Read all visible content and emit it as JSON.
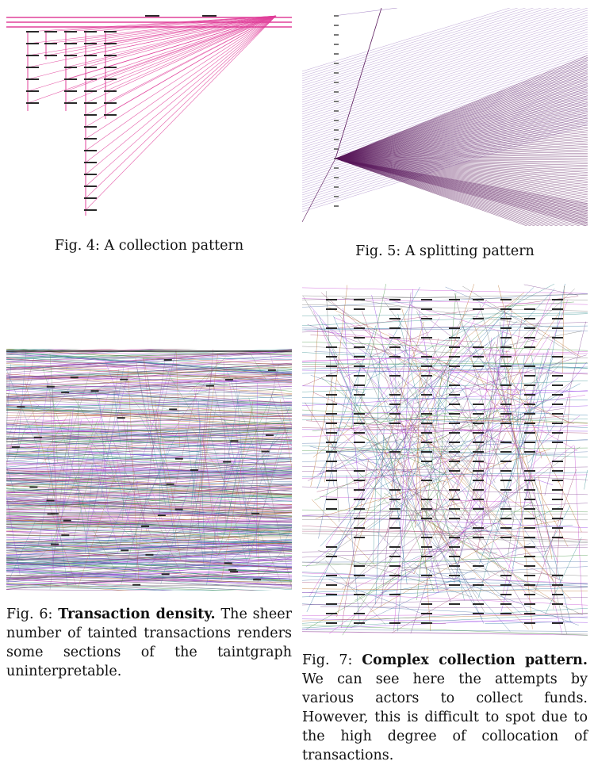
{
  "figures": [
    {
      "id": "fig4",
      "label": "Fig. 4:",
      "title": "",
      "text": "A collection pattern"
    },
    {
      "id": "fig5",
      "label": "Fig. 5:",
      "title": "",
      "text": "A splitting pattern"
    },
    {
      "id": "fig6",
      "label": "Fig. 6:",
      "title": "Transaction density.",
      "text": "The sheer number of tainted transactions renders some sections of the taintgraph uninterpretable."
    },
    {
      "id": "fig7",
      "label": "Fig. 7:",
      "title": "Complex collection pattern.",
      "text": "We can see here the attempts by various actors to collect funds. However, this is difficult to spot due to the high degree of collocation of transactions."
    }
  ],
  "colors": {
    "magenta": "#e0409a",
    "purple": "#5a1a5c",
    "lavender": "#a98bc8",
    "node": "#2a2a2a",
    "dense_palette": [
      "#c23bd0",
      "#7c3e8e",
      "#3b8f3b",
      "#4a6ea8",
      "#a03a6a",
      "#6e6e6e",
      "#2d8b8b",
      "#8a2be2",
      "#b5651d",
      "#1f6f9f"
    ]
  }
}
